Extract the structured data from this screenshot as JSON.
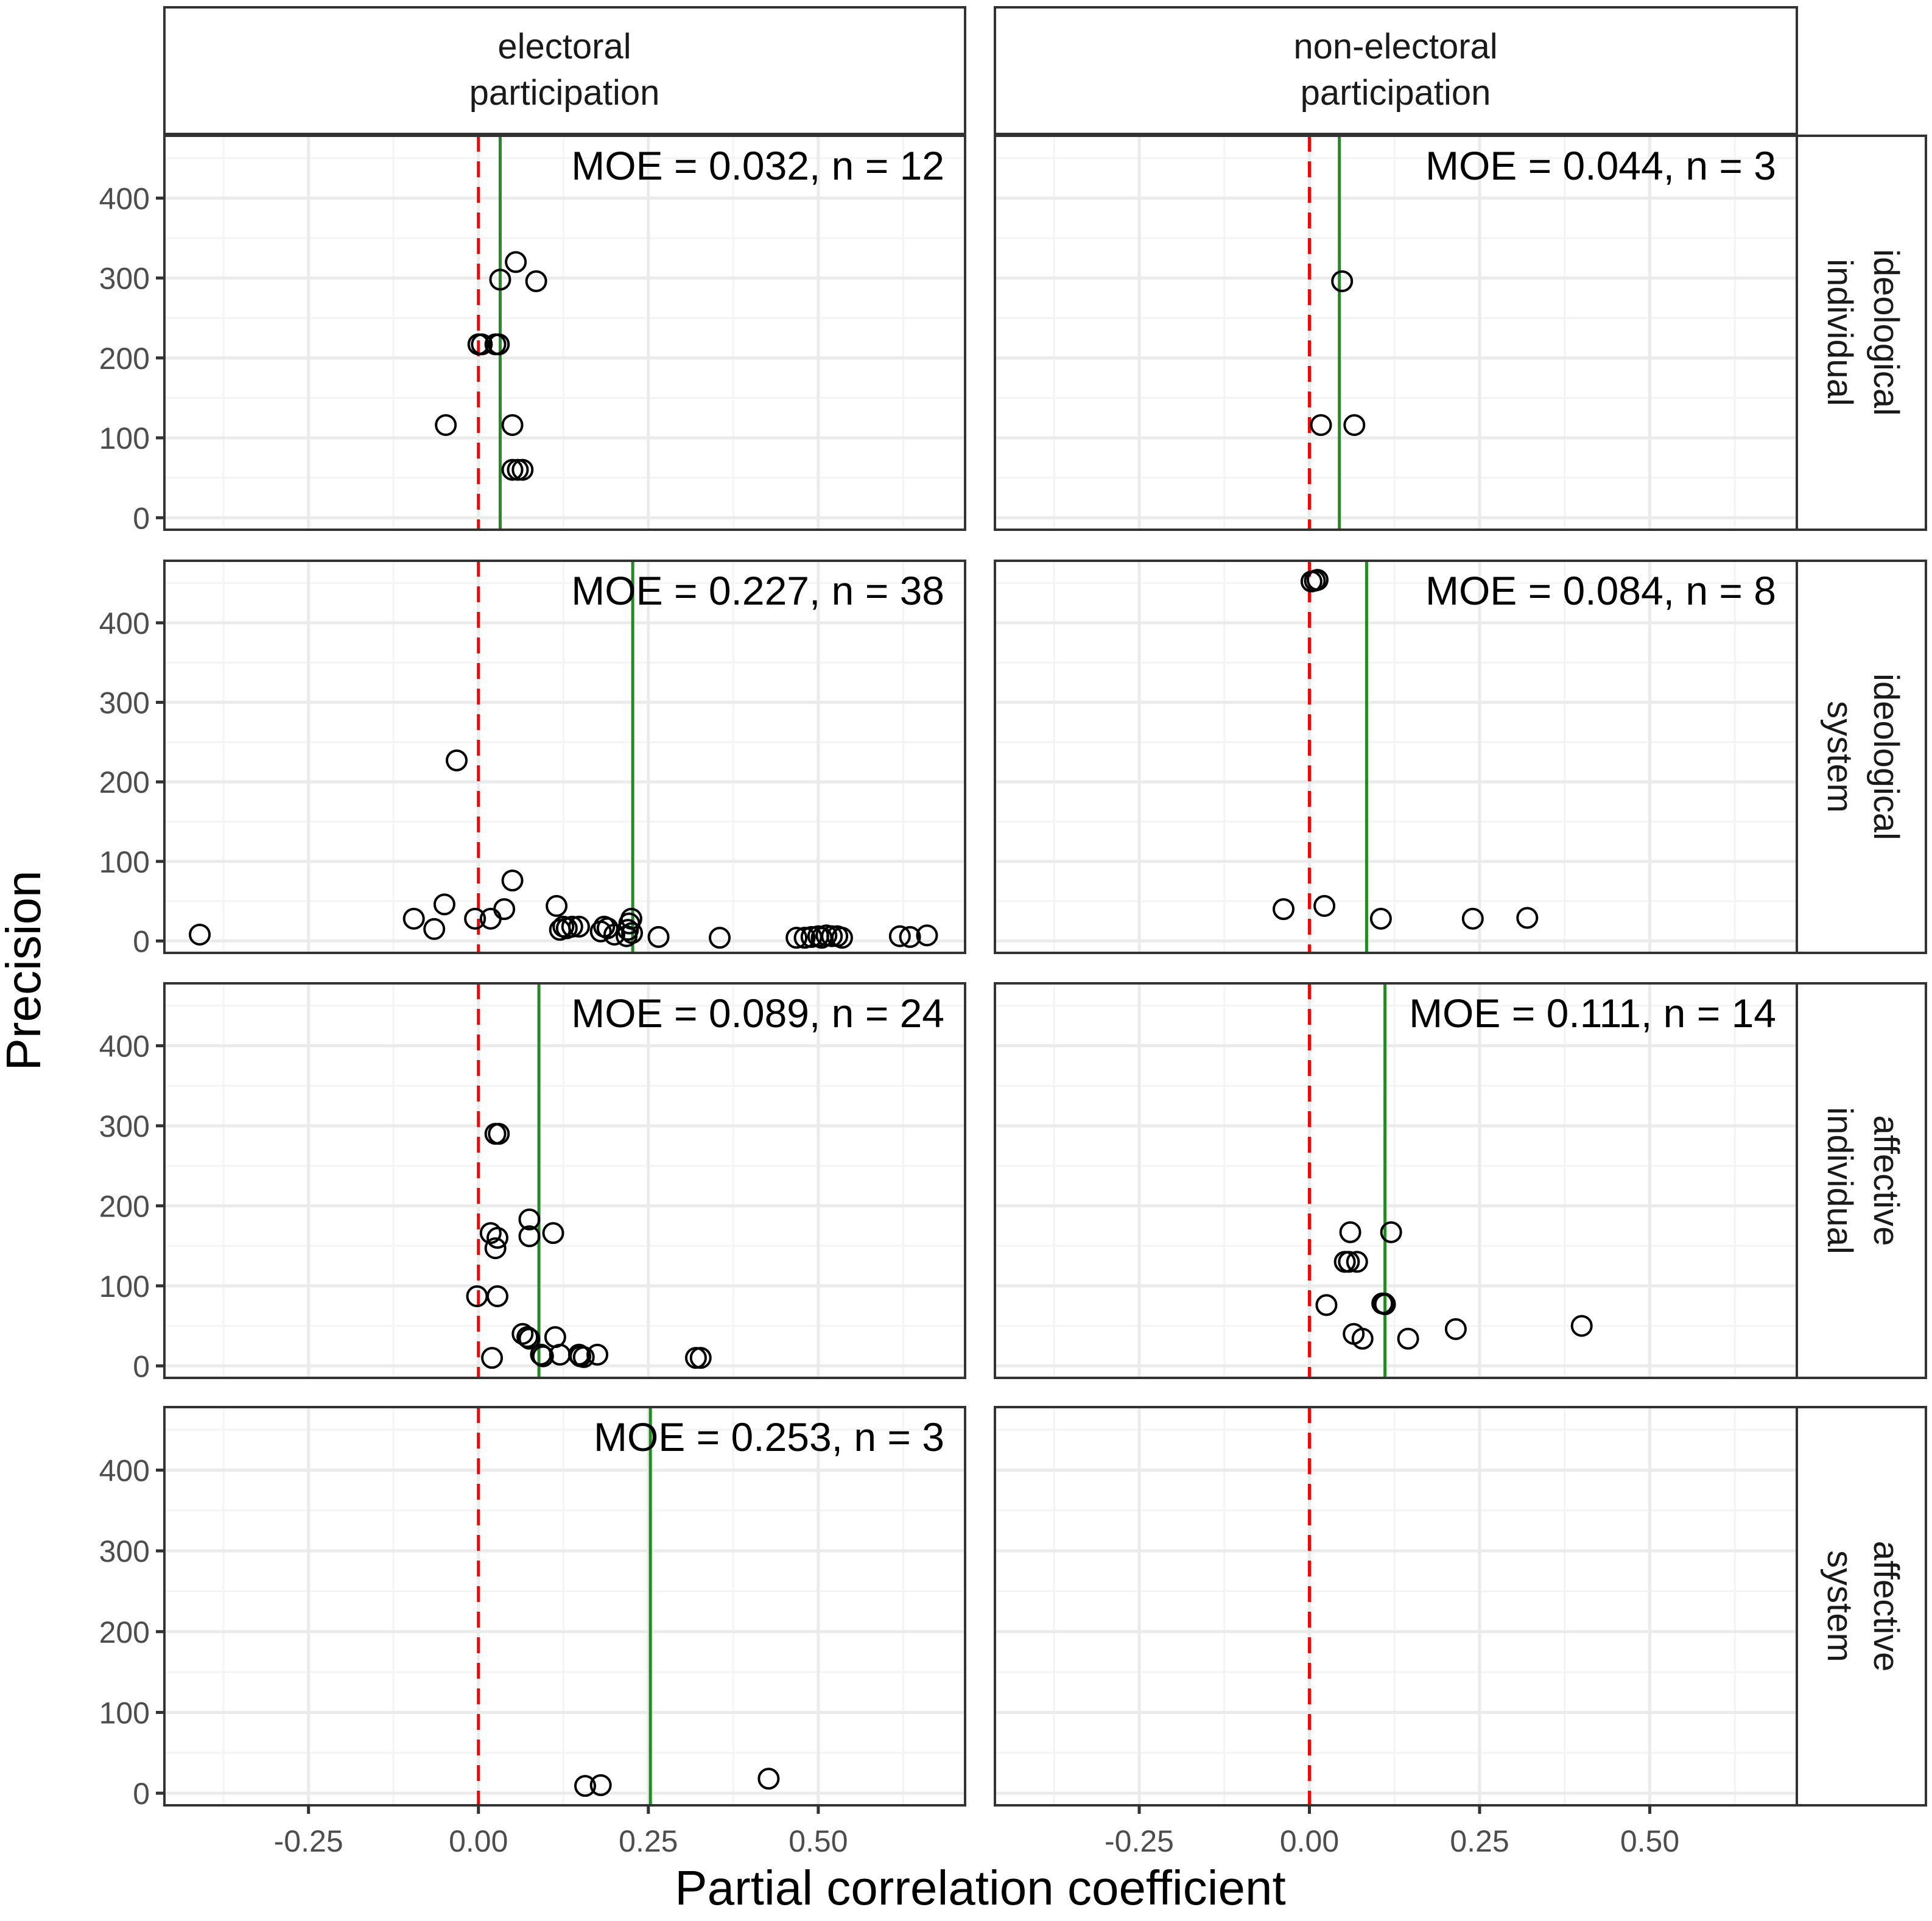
{
  "chart_data": {
    "type": "scatter",
    "subtype": "faceted funnel plot",
    "xlabel": "Partial correlation coefficient",
    "ylabel": "Precision",
    "xlim": [
      -0.462,
      0.716
    ],
    "ylim": [
      -15,
      478
    ],
    "x_ticks": [
      -0.25,
      0.0,
      0.25,
      0.5
    ],
    "x_tick_labels": [
      "-0.25",
      "0.00",
      "0.25",
      "0.50"
    ],
    "y_ticks": [
      0,
      100,
      200,
      300,
      400
    ],
    "y_tick_labels": [
      "0",
      "100",
      "200",
      "300",
      "400"
    ],
    "grid": true,
    "legend": "none",
    "reference_line": {
      "x": 0,
      "style": "dashed",
      "color": "#ff0000"
    },
    "estimate_line_color": "#228b22",
    "point_style": "open circle, black",
    "columns": [
      {
        "label_line1": "electoral",
        "label_line2": "participation"
      },
      {
        "label_line1": "non-electoral",
        "label_line2": "participation"
      }
    ],
    "rows": [
      {
        "label_line1": "ideological",
        "label_line2": "individual"
      },
      {
        "label_line1": "ideological",
        "label_line2": "system"
      },
      {
        "label_line1": "affective",
        "label_line2": "individual"
      },
      {
        "label_line1": "affective",
        "label_line2": "system"
      }
    ],
    "panels": [
      {
        "row": 0,
        "col": 0,
        "annotation": "MOE = 0.032, n = 12",
        "moe": 0.032,
        "n": 12,
        "points": [
          [
            0.055,
            320
          ],
          [
            0.032,
            298
          ],
          [
            0.085,
            296
          ],
          [
            0.0,
            217
          ],
          [
            0.005,
            217
          ],
          [
            0.025,
            217
          ],
          [
            0.03,
            217
          ],
          [
            -0.048,
            116
          ],
          [
            0.05,
            116
          ],
          [
            0.05,
            60
          ],
          [
            0.058,
            60
          ],
          [
            0.065,
            60
          ]
        ]
      },
      {
        "row": 0,
        "col": 1,
        "annotation": "MOE = 0.044, n = 3",
        "moe": 0.044,
        "n": 3,
        "points": [
          [
            0.048,
            296
          ],
          [
            0.017,
            116
          ],
          [
            0.066,
            116
          ]
        ]
      },
      {
        "row": 1,
        "col": 0,
        "annotation": "MOE = 0.227, n = 38",
        "moe": 0.227,
        "n": 38,
        "points": [
          [
            -0.41,
            8
          ],
          [
            -0.032,
            227
          ],
          [
            0.05,
            76
          ],
          [
            -0.095,
            28
          ],
          [
            -0.05,
            46
          ],
          [
            -0.065,
            15
          ],
          [
            -0.005,
            28
          ],
          [
            0.018,
            28
          ],
          [
            0.038,
            40
          ],
          [
            0.115,
            44
          ],
          [
            0.12,
            14
          ],
          [
            0.125,
            18
          ],
          [
            0.13,
            16
          ],
          [
            0.138,
            18
          ],
          [
            0.148,
            18
          ],
          [
            0.18,
            12
          ],
          [
            0.185,
            18
          ],
          [
            0.19,
            16
          ],
          [
            0.218,
            6
          ],
          [
            0.22,
            14
          ],
          [
            0.222,
            22
          ],
          [
            0.225,
            28
          ],
          [
            0.226,
            10
          ],
          [
            0.265,
            5
          ],
          [
            0.355,
            4
          ],
          [
            0.468,
            4
          ],
          [
            0.48,
            4
          ],
          [
            0.49,
            5
          ],
          [
            0.5,
            6
          ],
          [
            0.505,
            4
          ],
          [
            0.512,
            7
          ],
          [
            0.52,
            6
          ],
          [
            0.528,
            6
          ],
          [
            0.535,
            4
          ],
          [
            0.62,
            6
          ],
          [
            0.635,
            5
          ],
          [
            0.66,
            7
          ],
          [
            0.2,
            8
          ]
        ]
      },
      {
        "row": 1,
        "col": 1,
        "annotation": "MOE = 0.084, n = 8",
        "moe": 0.084,
        "n": 8,
        "points": [
          [
            0.003,
            452
          ],
          [
            0.008,
            453
          ],
          [
            0.012,
            454
          ],
          [
            -0.038,
            40
          ],
          [
            0.022,
            44
          ],
          [
            0.105,
            28
          ],
          [
            0.24,
            28
          ],
          [
            0.32,
            29
          ]
        ]
      },
      {
        "row": 2,
        "col": 0,
        "annotation": "MOE = 0.089, n = 24",
        "moe": 0.089,
        "n": 24,
        "points": [
          [
            0.025,
            290
          ],
          [
            0.03,
            290
          ],
          [
            0.075,
            183
          ],
          [
            0.018,
            166
          ],
          [
            0.028,
            160
          ],
          [
            0.075,
            162
          ],
          [
            0.11,
            166
          ],
          [
            0.025,
            147
          ],
          [
            -0.002,
            87
          ],
          [
            0.028,
            87
          ],
          [
            0.065,
            40
          ],
          [
            0.075,
            34
          ],
          [
            0.072,
            36
          ],
          [
            0.113,
            36
          ],
          [
            0.02,
            10
          ],
          [
            0.092,
            14
          ],
          [
            0.12,
            14
          ],
          [
            0.148,
            14
          ],
          [
            0.155,
            11
          ],
          [
            0.175,
            14
          ],
          [
            0.32,
            10
          ],
          [
            0.327,
            10
          ],
          [
            0.15,
            12
          ],
          [
            0.095,
            12
          ]
        ]
      },
      {
        "row": 2,
        "col": 1,
        "annotation": "MOE = 0.111, n = 14",
        "moe": 0.111,
        "n": 14,
        "points": [
          [
            0.06,
            167
          ],
          [
            0.12,
            167
          ],
          [
            0.052,
            130
          ],
          [
            0.058,
            130
          ],
          [
            0.07,
            130
          ],
          [
            0.025,
            76
          ],
          [
            0.107,
            78
          ],
          [
            0.11,
            78
          ],
          [
            0.065,
            40
          ],
          [
            0.078,
            34
          ],
          [
            0.145,
            34
          ],
          [
            0.215,
            46
          ],
          [
            0.4,
            50
          ],
          [
            0.111,
            77
          ]
        ]
      },
      {
        "row": 3,
        "col": 0,
        "annotation": "MOE = 0.253, n = 3",
        "moe": 0.253,
        "n": 3,
        "points": [
          [
            0.157,
            9
          ],
          [
            0.18,
            10
          ],
          [
            0.427,
            18
          ]
        ]
      },
      {
        "row": 3,
        "col": 1,
        "annotation": "",
        "moe": null,
        "n": 0,
        "points": []
      }
    ]
  },
  "colors": {
    "reference_line": "#ff0000",
    "estimate_line": "#228b22",
    "grid_major": "#ebebeb",
    "grid_minor": "#f4f4f4",
    "panel_border": "#333333",
    "tick_text": "#4d4d4d"
  }
}
